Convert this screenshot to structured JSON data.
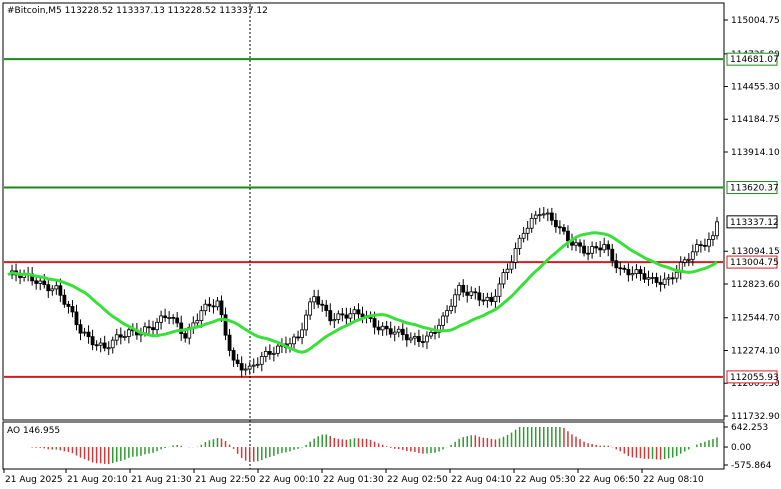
{
  "chart_header": {
    "title": "#Bitcoin,M5  113228.52 113337.13 113228.52 113337.12"
  },
  "oscillator": {
    "label": "AO 146.955",
    "axis_labels": [
      "642.253",
      "0.00",
      "-575.864"
    ],
    "axis_values": [
      642.253,
      0,
      -575.864
    ],
    "up_color": "#2e9b2e",
    "down_color": "#d23a3a"
  },
  "chart_data": {
    "type": "candlestick",
    "symbol": "#Bitcoin",
    "timeframe": "M5",
    "price_axis_labels": [
      "115004.75",
      "114725.00",
      "114455.30",
      "114184.75",
      "113914.10",
      "113620.37",
      "113337.12",
      "113094.15",
      "113004.75",
      "112823.60",
      "112544.70",
      "112274.10",
      "112055.93",
      "112003.50",
      "111732.90"
    ],
    "ylim": [
      111732.9,
      115004.75
    ],
    "time_labels": [
      "21 Aug 2025",
      "21 Aug 20:10",
      "21 Aug 21:30",
      "21 Aug 22:50",
      "22 Aug 00:10",
      "22 Aug 01:30",
      "22 Aug 02:50",
      "22 Aug 04:10",
      "22 Aug 05:30",
      "22 Aug 06:50",
      "22 Aug 08:10"
    ],
    "current_price": 113337.12,
    "horizontal_levels": [
      {
        "value": 114681.07,
        "label": "114681.07",
        "color": "#1a8a1a"
      },
      {
        "value": 113620.37,
        "label": "113620.37",
        "color": "#1a8a1a"
      },
      {
        "value": 113004.75,
        "label": "113004.75",
        "color": "#d21e1e"
      },
      {
        "value": 112055.93,
        "label": "112055.93",
        "color": "#d21e1e"
      }
    ],
    "moving_average_color": "#3ae03a",
    "candle_up_color": "#ffffff",
    "candle_down_color": "#000000",
    "grid": false,
    "vertical_marker": "21 Aug 22:50"
  }
}
